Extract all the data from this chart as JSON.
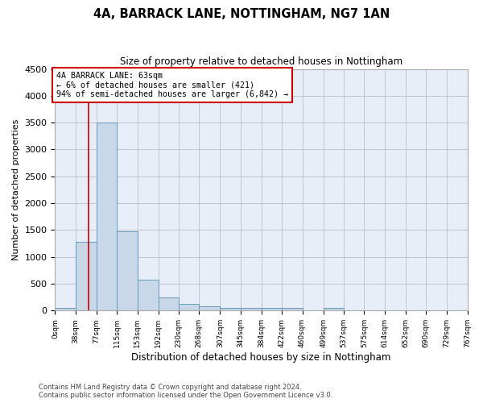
{
  "title": "4A, BARRACK LANE, NOTTINGHAM, NG7 1AN",
  "subtitle": "Size of property relative to detached houses in Nottingham",
  "xlabel": "Distribution of detached houses by size in Nottingham",
  "ylabel": "Number of detached properties",
  "bar_color": "#c8d8e8",
  "bar_edge_color": "#6699bb",
  "grid_color": "#bbbbcc",
  "bg_color": "#e8eef8",
  "red_line_color": "#cc0000",
  "annotation_box_color": "#cc0000",
  "bins": [
    0,
    38,
    77,
    115,
    153,
    192,
    230,
    268,
    307,
    345,
    384,
    422,
    460,
    499,
    537,
    575,
    614,
    652,
    690,
    729,
    767
  ],
  "counts": [
    50,
    1280,
    3500,
    1480,
    580,
    240,
    120,
    80,
    55,
    55,
    50,
    50,
    0,
    55,
    0,
    0,
    0,
    0,
    0,
    0
  ],
  "property_size": 63,
  "annotation_line1": "4A BARRACK LANE: 63sqm",
  "annotation_line2": "← 6% of detached houses are smaller (421)",
  "annotation_line3": "94% of semi-detached houses are larger (6,842) →",
  "ylim": [
    0,
    4500
  ],
  "yticks": [
    0,
    500,
    1000,
    1500,
    2000,
    2500,
    3000,
    3500,
    4000,
    4500
  ],
  "footer1": "Contains HM Land Registry data © Crown copyright and database right 2024.",
  "footer2": "Contains public sector information licensed under the Open Government Licence v3.0."
}
